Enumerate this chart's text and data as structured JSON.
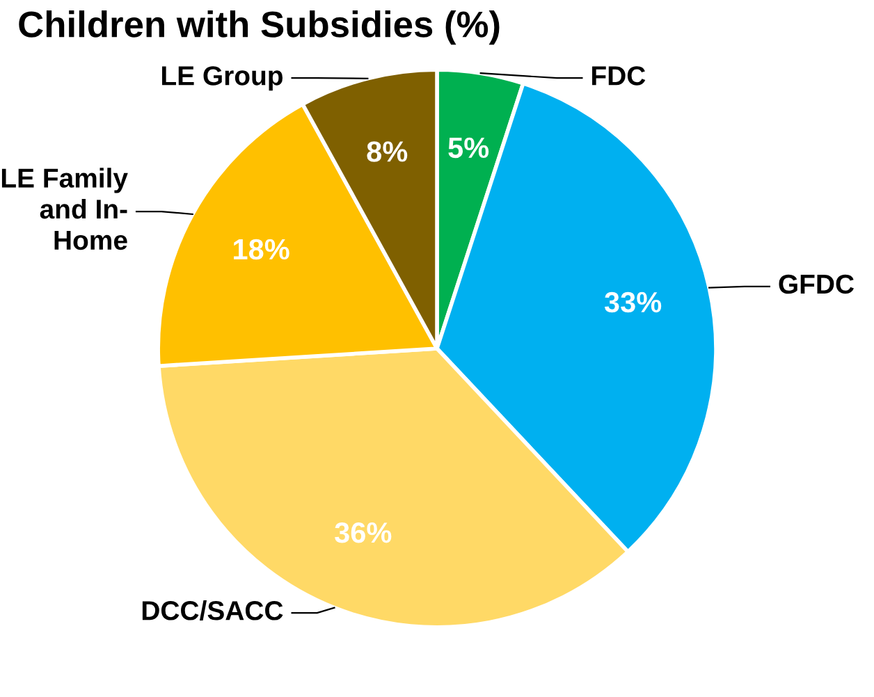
{
  "chart_data": {
    "type": "pie",
    "title": "Children with Subsidies (%)",
    "categories": [
      "FDC",
      "GFDC",
      "DCC/SACC",
      "LE Family and In-Home",
      "LE Group"
    ],
    "values": [
      5,
      33,
      36,
      18,
      8
    ],
    "value_labels": [
      "5%",
      "33%",
      "36%",
      "18%",
      "8%"
    ],
    "colors": [
      "#00b050",
      "#00b0f0",
      "#ffd966",
      "#ffc000",
      "#7f6000"
    ],
    "legend": false
  }
}
